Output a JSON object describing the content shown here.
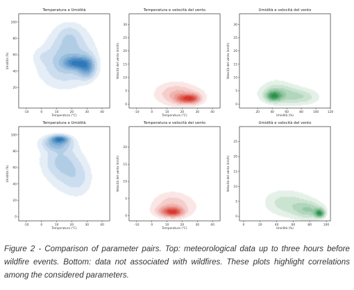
{
  "caption": "Figure 2 - Comparison of parameter pairs. Top: meteorological data up to three hours before wildfire events. Bottom: data not associated with wildfires. These plots highlight correlations among the considered parameters.",
  "chart_data": [
    {
      "type": "heatmap",
      "title": "Temperatura e Umidità",
      "xlabel": "Temperatura (°C)",
      "ylabel": "Umidità (%)",
      "xlim": [
        -15,
        45
      ],
      "ylim": [
        -5,
        110
      ],
      "xticks": [
        -10,
        0,
        10,
        20,
        30,
        40
      ],
      "yticks": [
        20,
        40,
        60,
        80,
        100
      ],
      "colormap": "#1f6fb4",
      "density_peaks": [
        {
          "x": 30,
          "y": 45,
          "sx": 4,
          "sy": 9,
          "weight": 1.0
        },
        {
          "x": 22,
          "y": 50,
          "sx": 5,
          "sy": 5,
          "weight": 0.9
        },
        {
          "x": 20,
          "y": 62,
          "sx": 11,
          "sy": 22,
          "weight": 0.5
        },
        {
          "x": 12,
          "y": 45,
          "sx": 12,
          "sy": 20,
          "weight": 0.35
        },
        {
          "x": 18,
          "y": 85,
          "sx": 6,
          "sy": 10,
          "weight": 0.25
        },
        {
          "x": 0,
          "y": 58,
          "sx": 4,
          "sy": 6,
          "weight": 0.15
        }
      ]
    },
    {
      "type": "heatmap",
      "title": "Temperatura e velocità del vento",
      "xlabel": "Temperatura (°C)",
      "ylabel": "Velocità del vento (km/h)",
      "xlim": [
        -15,
        45
      ],
      "ylim": [
        -1.5,
        34
      ],
      "xticks": [
        -10,
        0,
        10,
        20,
        30,
        40
      ],
      "yticks": [
        0,
        5,
        10,
        15,
        20,
        25,
        30
      ],
      "colormap": "#d42a1e",
      "density_peaks": [
        {
          "x": 27,
          "y": 2,
          "sx": 3.5,
          "sy": 1.2,
          "weight": 1.0
        },
        {
          "x": 21,
          "y": 2,
          "sx": 4,
          "sy": 1.2,
          "weight": 0.85
        },
        {
          "x": 20,
          "y": 3,
          "sx": 11,
          "sy": 2.8,
          "weight": 0.5
        },
        {
          "x": 14,
          "y": 5,
          "sx": 9,
          "sy": 3.2,
          "weight": 0.25
        }
      ]
    },
    {
      "type": "heatmap",
      "title": "Umidità e velocità del vento",
      "xlabel": "Umidità (%)",
      "ylabel": "Velocità del vento (km/h)",
      "xlim": [
        -5,
        120
      ],
      "ylim": [
        -1.5,
        34
      ],
      "xticks": [
        20,
        40,
        60,
        80,
        100,
        120
      ],
      "yticks": [
        0,
        5,
        10,
        15,
        20,
        25,
        30
      ],
      "colormap": "#1e8a3e",
      "density_peaks": [
        {
          "x": 42,
          "y": 3,
          "sx": 7,
          "sy": 1.3,
          "weight": 1.0
        },
        {
          "x": 55,
          "y": 3.5,
          "sx": 22,
          "sy": 2.6,
          "weight": 0.5
        },
        {
          "x": 85,
          "y": 2.5,
          "sx": 16,
          "sy": 2.0,
          "weight": 0.3
        },
        {
          "x": 45,
          "y": 6,
          "sx": 14,
          "sy": 3.0,
          "weight": 0.2
        }
      ]
    },
    {
      "type": "heatmap",
      "title": "Temperatura e Umidità",
      "xlabel": "Temperatura (°C)",
      "ylabel": "Umidità (%)",
      "xlim": [
        -15,
        45
      ],
      "ylim": [
        -5,
        110
      ],
      "xticks": [
        -10,
        0,
        10,
        20,
        30,
        40
      ],
      "yticks": [
        0,
        20,
        40,
        60,
        80,
        100
      ],
      "colormap": "#1f6fb4",
      "density_peaks": [
        {
          "x": 12,
          "y": 95,
          "sx": 4,
          "sy": 3,
          "weight": 1.0
        },
        {
          "x": 10,
          "y": 90,
          "sx": 7,
          "sy": 6,
          "weight": 0.7
        },
        {
          "x": 12,
          "y": 70,
          "sx": 9,
          "sy": 15,
          "weight": 0.45
        },
        {
          "x": 18,
          "y": 50,
          "sx": 10,
          "sy": 18,
          "weight": 0.3
        },
        {
          "x": 25,
          "y": 45,
          "sx": 6,
          "sy": 15,
          "weight": 0.2
        }
      ]
    },
    {
      "type": "heatmap",
      "title": "Temperatura e velocità del vento",
      "xlabel": "Temperatura (°C)",
      "ylabel": "Velocità del vento (km/h)",
      "xlim": [
        -15,
        45
      ],
      "ylim": [
        -1.5,
        26
      ],
      "xticks": [
        -10,
        0,
        10,
        20,
        30,
        40
      ],
      "yticks": [
        0,
        5,
        10,
        15,
        20
      ],
      "colormap": "#d42a1e",
      "density_peaks": [
        {
          "x": 15,
          "y": 1,
          "sx": 4,
          "sy": 0.9,
          "weight": 1.0
        },
        {
          "x": 10,
          "y": 1.2,
          "sx": 5,
          "sy": 1.0,
          "weight": 0.7
        },
        {
          "x": 15,
          "y": 2.5,
          "sx": 11,
          "sy": 2.5,
          "weight": 0.45
        },
        {
          "x": 13,
          "y": 4.5,
          "sx": 8,
          "sy": 2.5,
          "weight": 0.2
        }
      ]
    },
    {
      "type": "heatmap",
      "title": "Umidità e velocità del vento",
      "xlabel": "Umidità (%)",
      "ylabel": "Velocità del vento (km/h)",
      "xlim": [
        -5,
        105
      ],
      "ylim": [
        -1.5,
        30
      ],
      "xticks": [
        0,
        20,
        40,
        60,
        80,
        100
      ],
      "yticks": [
        0,
        5,
        10,
        15,
        20,
        25
      ],
      "colormap": "#1e8a3e",
      "density_peaks": [
        {
          "x": 92,
          "y": 1,
          "sx": 4,
          "sy": 1.0,
          "weight": 1.0
        },
        {
          "x": 80,
          "y": 2,
          "sx": 12,
          "sy": 2.0,
          "weight": 0.45
        },
        {
          "x": 60,
          "y": 4,
          "sx": 18,
          "sy": 3.2,
          "weight": 0.3
        },
        {
          "x": 40,
          "y": 5,
          "sx": 15,
          "sy": 3.0,
          "weight": 0.15
        }
      ]
    }
  ]
}
